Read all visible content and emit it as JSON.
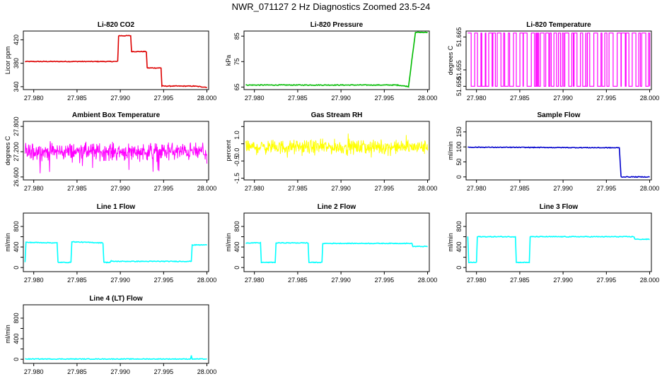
{
  "title": "NWR_071127  2 Hz Diagnostics Zoomed 23.5-24",
  "colors": {
    "red": "#dd0000",
    "green": "#00bb00",
    "magenta": "#ff00ff",
    "yellow": "#ffff00",
    "blue": "#0000cc",
    "cyan": "#00ffff"
  },
  "x_ticks": [
    "27.980",
    "27.985",
    "27.990",
    "27.995",
    "28.000"
  ],
  "x_tick_values": [
    27.98,
    27.985,
    27.99,
    27.995,
    28.0
  ],
  "xlim": [
    27.9788,
    28.0002
  ],
  "chart_data": [
    {
      "id": "co2",
      "type": "line",
      "title": "Li-820 CO2",
      "ylabel": "Licor ppm",
      "color": "red",
      "ylim": [
        335,
        435
      ],
      "y_ticks": [
        340,
        380,
        420
      ],
      "x": [
        27.979,
        27.9897,
        27.9898,
        27.9912,
        27.9913,
        27.993,
        27.9931,
        27.9947,
        27.9948,
        27.9985,
        28.0
      ],
      "values": [
        383,
        383,
        427,
        427,
        400,
        400,
        372,
        372,
        341,
        341,
        339
      ]
    },
    {
      "id": "pressure",
      "type": "line",
      "title": "Li-820 Pressure",
      "ylabel": "kPa",
      "color": "green",
      "ylim": [
        64,
        87
      ],
      "y_ticks": [
        65,
        75,
        85
      ],
      "x": [
        27.979,
        27.9965,
        27.9978,
        27.9982,
        27.9986,
        28.0
      ],
      "values": [
        65.8,
        65.8,
        65.2,
        76,
        86.5,
        86.5
      ]
    },
    {
      "id": "li820temp",
      "type": "square",
      "title": "Li-820 Temperature",
      "ylabel": "degrees C",
      "color": "magenta",
      "ylim": [
        51.649,
        51.6668
      ],
      "y_ticks": [
        51.65,
        51.655,
        51.665
      ],
      "low": 51.65,
      "high": 51.6662
    },
    {
      "id": "ambtemp",
      "type": "noise",
      "title": "Ambient Box Temperature",
      "ylabel": "degrees C",
      "color": "magenta",
      "ylim": [
        26.53,
        27.92
      ],
      "y_ticks": [
        26.6,
        27.2,
        27.8
      ],
      "mean": 27.2,
      "amplitude": 0.3
    },
    {
      "id": "rh",
      "type": "noise",
      "title": "Gas Stream RH",
      "ylabel": "percent",
      "color": "yellow",
      "ylim": [
        -1.6,
        1.8
      ],
      "y_ticks": [
        -1.5,
        -0.5,
        0.5,
        1.5
      ],
      "tick_labels": [
        "-1.5",
        "-0.5",
        "0.0",
        "1.0"
      ],
      "tick_label_values": [
        -1.5,
        -0.5,
        0.0,
        1.0
      ],
      "mean": 0.3,
      "amplitude": 0.6
    },
    {
      "id": "sampleflow",
      "type": "line",
      "title": "Sample Flow",
      "ylabel": "ml/min",
      "color": "blue",
      "ylim": [
        -10,
        185
      ],
      "y_ticks": [
        0,
        50,
        100,
        150
      ],
      "x": [
        27.979,
        27.9965,
        27.9967,
        28.0
      ],
      "values": [
        99,
        97,
        0,
        0
      ]
    },
    {
      "id": "line1",
      "type": "line",
      "title": "Line 1 Flow",
      "ylabel": "ml/min",
      "color": "cyan",
      "ylim": [
        -80,
        1060
      ],
      "y_ticks": [
        0,
        200,
        400,
        600,
        800
      ],
      "tick_labels": [
        "0",
        "400",
        "800"
      ],
      "tick_label_values": [
        0,
        400,
        800
      ],
      "x": [
        27.979,
        27.9791,
        27.9827,
        27.9828,
        27.9843,
        27.9844,
        27.988,
        27.9881,
        27.9888,
        27.9889,
        27.9982,
        27.9983,
        28.0
      ],
      "values": [
        100,
        490,
        480,
        100,
        100,
        500,
        480,
        100,
        100,
        120,
        120,
        440,
        440
      ]
    },
    {
      "id": "line2",
      "type": "line",
      "title": "Line 2 Flow",
      "ylabel": "ml/min",
      "color": "cyan",
      "ylim": [
        -80,
        1060
      ],
      "y_ticks": [
        0,
        200,
        400,
        600,
        800
      ],
      "tick_labels": [
        "0",
        "400",
        "800"
      ],
      "tick_label_values": [
        0,
        400,
        800
      ],
      "x": [
        27.979,
        27.9807,
        27.9808,
        27.9824,
        27.9825,
        27.9862,
        27.9863,
        27.9878,
        27.9879,
        27.9982,
        27.9983,
        28.0
      ],
      "values": [
        480,
        480,
        100,
        100,
        480,
        480,
        100,
        100,
        470,
        470,
        410,
        410
      ]
    },
    {
      "id": "line3",
      "type": "line",
      "title": "Line 3 Flow",
      "ylabel": "ml/min",
      "color": "cyan",
      "ylim": [
        -80,
        1060
      ],
      "y_ticks": [
        0,
        200,
        400,
        600,
        800
      ],
      "tick_labels": [
        "0",
        "400",
        "800"
      ],
      "tick_label_values": [
        0,
        400,
        800
      ],
      "x": [
        27.979,
        27.9791,
        27.98,
        27.9801,
        27.9845,
        27.9846,
        27.9861,
        27.9862,
        27.9982,
        27.9983,
        28.0
      ],
      "values": [
        600,
        100,
        100,
        600,
        600,
        100,
        100,
        600,
        600,
        550,
        550
      ]
    },
    {
      "id": "line4",
      "type": "line",
      "title": "Line 4 (LT) Flow",
      "ylabel": "ml/min",
      "color": "cyan",
      "ylim": [
        -80,
        1060
      ],
      "y_ticks": [
        0,
        200,
        400,
        600,
        800
      ],
      "tick_labels": [
        "0",
        "400",
        "800"
      ],
      "tick_label_values": [
        0,
        400,
        800
      ],
      "x": [
        27.979,
        27.9981,
        27.9982,
        27.9983,
        28.0
      ],
      "values": [
        5,
        5,
        70,
        5,
        5
      ]
    }
  ]
}
